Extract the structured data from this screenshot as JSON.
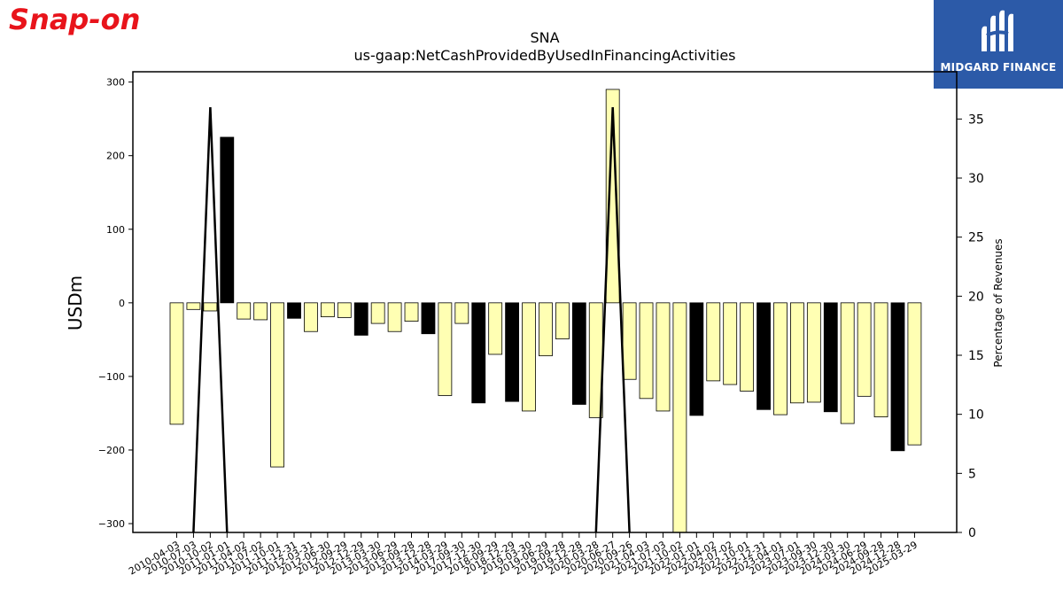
{
  "logo": {
    "text": "Snap-on",
    "color": "#e8141b"
  },
  "badge": {
    "text": "MIDGARD FINANCE",
    "color": "#2c5aa8"
  },
  "chart_data": {
    "type": "bar",
    "title": "SNA",
    "subtitle": "us-gaap:NetCashProvidedByUsedInFinancingActivities",
    "ylabel": "USDm",
    "y2label": "Percentage of Revenues",
    "ylim": [
      -312,
      314
    ],
    "y2lim": [
      0,
      39
    ],
    "yticks": [
      300,
      200,
      100,
      0,
      -100,
      -200,
      -300
    ],
    "y2ticks": [
      0,
      5,
      10,
      15,
      20,
      25,
      30,
      35
    ],
    "categories": [
      "2010-04-03",
      "2010-07-03",
      "2010-10-02",
      "2011-01-01",
      "2011-04-02",
      "2011-07-02",
      "2011-10-01",
      "2011-12-31",
      "2012-03-31",
      "2012-06-30",
      "2012-09-29",
      "2012-12-29",
      "2013-03-30",
      "2013-06-29",
      "2013-09-28",
      "2013-12-28",
      "2014-03-29",
      "2017-09-30",
      "2017-12-30",
      "2018-09-29",
      "2018-12-29",
      "2019-03-30",
      "2019-06-29",
      "2019-09-28",
      "2019-12-28",
      "2020-03-28",
      "2020-06-27",
      "2020-09-26",
      "2021-04-03",
      "2021-07-03",
      "2021-10-02",
      "2022-01-01",
      "2022-04-02",
      "2022-07-02",
      "2022-10-01",
      "2022-12-31",
      "2023-04-01",
      "2023-07-01",
      "2023-09-30",
      "2023-12-30",
      "2024-03-30",
      "2024-06-29",
      "2024-09-28",
      "2024-12-28",
      "2025-03-29"
    ],
    "series": [
      {
        "values": [
          -165,
          -9,
          -11,
          225,
          -22,
          -23,
          -223,
          -21,
          -39,
          -19,
          -20,
          -44,
          -28,
          -39,
          -25,
          -42,
          -126,
          -28,
          -136,
          -70,
          -134,
          -147,
          -72,
          -49,
          -138,
          -156,
          290,
          -104,
          -130,
          -147,
          -312,
          -153,
          -106,
          -111,
          -120,
          -145,
          -152,
          -136,
          -135,
          -148,
          -164,
          -127,
          -155,
          -201,
          -193
        ],
        "colors": [
          "#ffffb3",
          "#ffffb3",
          "#ffffb3",
          "#000000",
          "#ffffb3",
          "#ffffb3",
          "#ffffb3",
          "#000000",
          "#ffffb3",
          "#ffffb3",
          "#ffffb3",
          "#000000",
          "#ffffb3",
          "#ffffb3",
          "#ffffb3",
          "#000000",
          "#ffffb3",
          "#ffffb3",
          "#000000",
          "#ffffb3",
          "#000000",
          "#ffffb3",
          "#ffffb3",
          "#ffffb3",
          "#000000",
          "#ffffb3",
          "#ffffb3",
          "#ffffb3",
          "#ffffb3",
          "#ffffb3",
          "#ffffb3",
          "#000000",
          "#ffffb3",
          "#ffffb3",
          "#ffffb3",
          "#000000",
          "#ffffb3",
          "#ffffb3",
          "#ffffb3",
          "#000000",
          "#ffffb3",
          "#ffffb3",
          "#ffffb3",
          "#000000",
          "#ffffb3"
        ]
      }
    ],
    "line_series": {
      "axis": "right",
      "values": [
        null,
        0,
        36,
        0,
        null,
        null,
        null,
        null,
        null,
        null,
        null,
        null,
        null,
        null,
        null,
        null,
        null,
        null,
        null,
        null,
        null,
        null,
        null,
        null,
        null,
        0,
        36,
        0,
        null,
        null,
        null,
        null,
        null,
        null,
        null,
        null,
        null,
        null,
        null,
        null,
        null,
        null,
        null,
        null,
        null
      ]
    },
    "grid": false
  }
}
